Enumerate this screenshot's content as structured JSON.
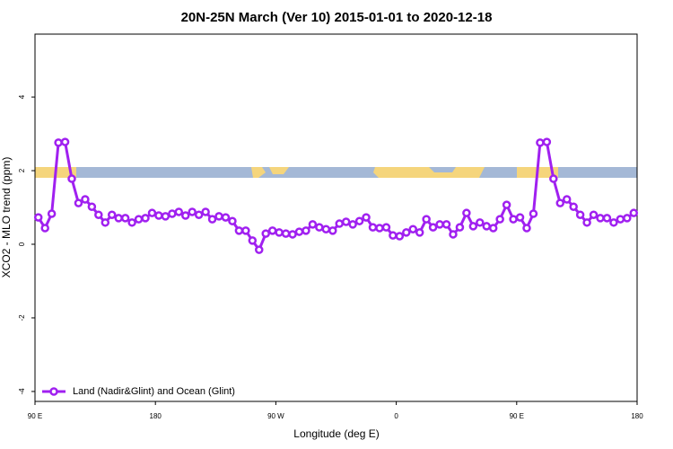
{
  "chart_data": {
    "type": "line",
    "title": "20N-25N March (Ver 10)   2015-01-01 to 2020-12-18",
    "xlabel": "Longitude (deg E)",
    "ylabel": "XCO2 - MLO trend (ppm)",
    "xlim": [
      90,
      540
    ],
    "ylim": [
      -4.27,
      5.71
    ],
    "xticks": [
      {
        "value": 90,
        "label": "90 E"
      },
      {
        "value": 180,
        "label": "180"
      },
      {
        "value": 270,
        "label": "90 W"
      },
      {
        "value": 360,
        "label": "0"
      },
      {
        "value": 450,
        "label": "90 E"
      },
      {
        "value": 540,
        "label": "180"
      }
    ],
    "yticks": [
      -4,
      -2,
      0,
      2,
      4
    ],
    "legend": "bottom-left",
    "x": [
      92.5,
      97.5,
      102.5,
      107.5,
      112.5,
      117.5,
      122.5,
      127.5,
      132.5,
      137.5,
      142.5,
      147.5,
      152.5,
      157.5,
      162.5,
      167.5,
      172.5,
      177.5,
      182.5,
      187.5,
      192.5,
      197.5,
      202.5,
      207.5,
      212.5,
      217.5,
      222.5,
      227.5,
      232.5,
      237.5,
      242.5,
      247.5,
      252.5,
      257.5,
      262.5,
      267.5,
      272.5,
      277.5,
      282.5,
      287.5,
      292.5,
      297.5,
      302.5,
      307.5,
      312.5,
      317.5,
      322.5,
      327.5,
      332.5,
      337.5,
      342.5,
      347.5,
      352.5,
      357.5,
      362.5,
      367.5,
      372.5,
      377.5,
      382.5,
      387.5,
      392.5,
      397.5,
      402.5,
      407.5,
      412.5,
      417.5,
      422.5,
      427.5,
      432.5,
      437.5,
      442.5,
      447.5,
      452.5,
      457.5,
      462.5,
      467.5,
      472.5,
      477.5,
      482.5,
      487.5,
      492.5,
      497.5,
      502.5,
      507.5,
      512.5,
      517.5,
      522.5,
      527.5,
      532.5,
      537.5
    ],
    "series": [
      {
        "name": "Land (Nadir&Glint) and Ocean (Glint)",
        "color": "#a020f0",
        "values": [
          0.73,
          0.44,
          0.83,
          2.76,
          2.78,
          1.78,
          1.12,
          1.22,
          1.02,
          0.8,
          0.59,
          0.8,
          0.71,
          0.71,
          0.59,
          0.68,
          0.71,
          0.85,
          0.78,
          0.76,
          0.83,
          0.88,
          0.78,
          0.88,
          0.8,
          0.88,
          0.68,
          0.76,
          0.73,
          0.63,
          0.37,
          0.37,
          0.1,
          -0.15,
          0.29,
          0.37,
          0.32,
          0.29,
          0.27,
          0.34,
          0.37,
          0.54,
          0.46,
          0.41,
          0.37,
          0.56,
          0.61,
          0.54,
          0.63,
          0.73,
          0.46,
          0.44,
          0.46,
          0.24,
          0.22,
          0.32,
          0.41,
          0.32,
          0.68,
          0.46,
          0.54,
          0.54,
          0.27,
          0.46,
          0.85,
          0.49,
          0.59,
          0.49,
          0.44,
          0.68,
          1.07,
          0.68,
          0.73,
          0.44,
          0.83,
          2.76,
          2.78,
          1.78,
          1.12,
          1.22,
          1.02,
          0.8,
          0.59,
          0.8,
          0.71,
          0.71,
          0.59,
          0.68,
          0.71,
          0.85
        ]
      }
    ]
  }
}
